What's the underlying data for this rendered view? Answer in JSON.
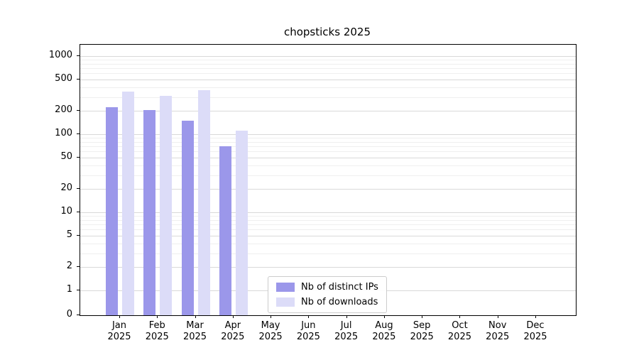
{
  "chart_data": {
    "type": "bar",
    "title": "chopsticks 2025",
    "categories": [
      "Jan 2025",
      "Feb 2025",
      "Mar 2025",
      "Apr 2025",
      "May 2025",
      "Jun 2025",
      "Jul 2025",
      "Aug 2025",
      "Sep 2025",
      "Oct 2025",
      "Nov 2025",
      "Dec 2025"
    ],
    "series": [
      {
        "name": "Nb of distinct IPs",
        "slug": "distinct-ips",
        "color": "#9b97ea",
        "values": [
          220,
          205,
          150,
          70,
          null,
          null,
          null,
          null,
          null,
          null,
          null,
          null
        ]
      },
      {
        "name": "Nb of downloads",
        "slug": "downloads",
        "color": "#dcdcf8",
        "values": [
          350,
          310,
          365,
          110,
          null,
          null,
          null,
          null,
          null,
          null,
          null,
          null
        ]
      }
    ],
    "yscale": "symlog",
    "y_ticks": [
      0,
      1,
      2,
      5,
      10,
      20,
      50,
      100,
      200,
      500,
      1000
    ],
    "y_minor_ticks": [
      3,
      4,
      6,
      7,
      8,
      9,
      30,
      40,
      60,
      70,
      80,
      90,
      300,
      400,
      600,
      700,
      800,
      900
    ],
    "ylim": [
      0,
      1400
    ],
    "xlabel": "",
    "ylabel": "",
    "grid": "horizontal",
    "legend_position": "lower center"
  }
}
